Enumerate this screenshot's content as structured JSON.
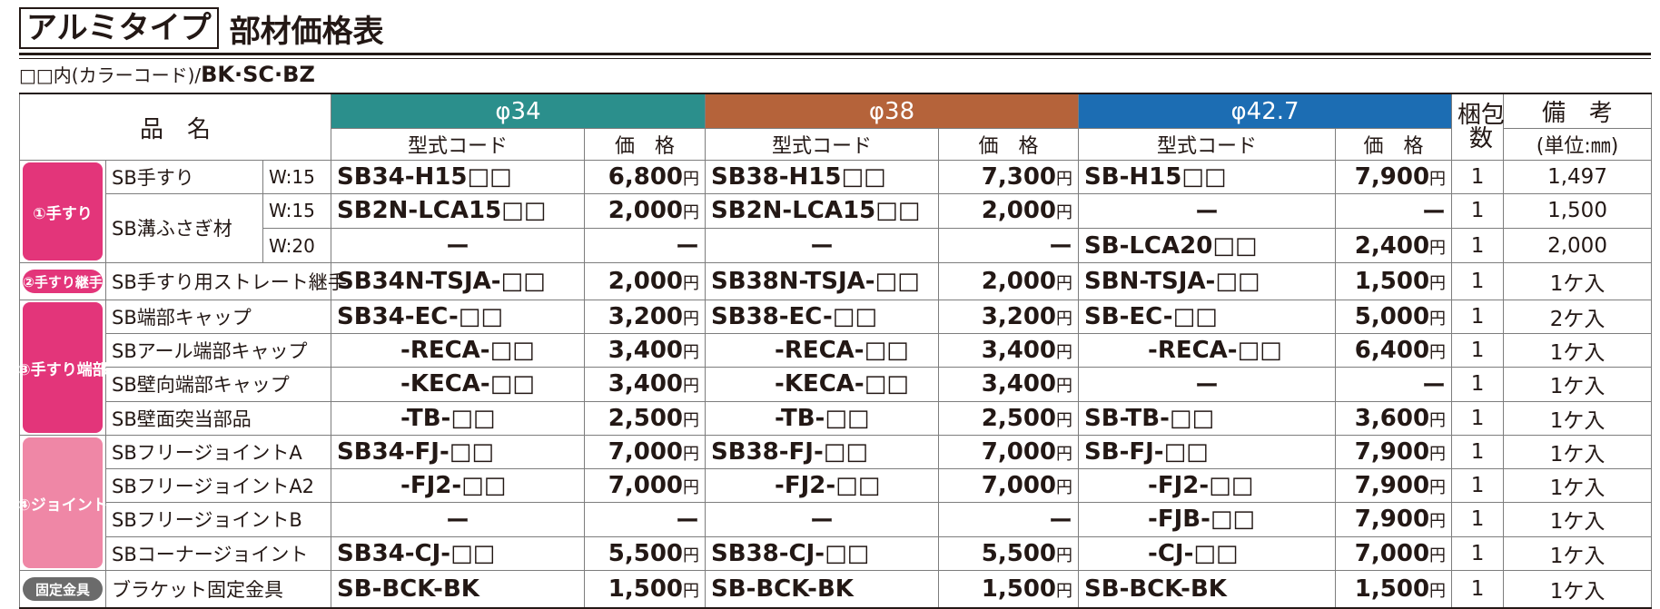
{
  "header": {
    "title_box": "アルミタイプ",
    "title": "部材価格表"
  },
  "note": {
    "text": "□□内(カラーコード)/",
    "codes": "BK·SC·BZ"
  },
  "table": {
    "head": {
      "item": "品　名",
      "diameters": [
        "φ34",
        "φ38",
        "φ42.7"
      ],
      "code": "型式コード",
      "price": "価　格",
      "pack": "梱包数",
      "remarks": "備　考",
      "unit": "(単位:㎜)"
    },
    "currency": "円",
    "groups": [
      {
        "label": "①手すり",
        "items": [
          {
            "name": "SB手すり",
            "variants": [
              {
                "width": "W:15",
                "cells": [
                  "SB34-H15□□",
                  "6,800",
                  "SB38-H15□□",
                  "7,300",
                  "SB-H15□□",
                  "7,900"
                ],
                "pack": 1,
                "remark": "1,497"
              }
            ]
          },
          {
            "name": "SB溝ふさぎ材",
            "variants": [
              {
                "width": "W:15",
                "cells": [
                  "SB2N-LCA15□□",
                  "2,000",
                  "SB2N-LCA15□□",
                  "2,000",
                  "ー",
                  "ー"
                ],
                "pack": 1,
                "remark": "1,500"
              },
              {
                "width": "W:20",
                "cells": [
                  "ー",
                  "ー",
                  "ー",
                  "ー",
                  "SB-LCA20□□",
                  "2,400"
                ],
                "pack": 1,
                "remark": "2,000"
              }
            ]
          }
        ]
      },
      {
        "label": "②手すり継手",
        "items": [
          {
            "name": "SB手すり用ストレート継手",
            "variants": [
              {
                "cells": [
                  "SB34N-TSJA-□□",
                  "2,000",
                  "SB38N-TSJA-□□",
                  "2,000",
                  "SBN-TSJA-□□",
                  "1,500"
                ],
                "pack": 1,
                "remark": "1ケ入"
              }
            ]
          }
        ]
      },
      {
        "label": "③手すり端部",
        "items": [
          {
            "name": "SB端部キャップ",
            "variants": [
              {
                "cells": [
                  "SB34-EC-□□",
                  "3,200",
                  "SB38-EC-□□",
                  "3,200",
                  "SB-EC-□□",
                  "5,000"
                ],
                "pack": 1,
                "remark": "2ケ入"
              }
            ]
          },
          {
            "name": "SBアール端部キャップ",
            "variants": [
              {
                "cells": [
                  "-RECA-□□",
                  "3,400",
                  "-RECA-□□",
                  "3,400",
                  "-RECA-□□",
                  "6,400"
                ],
                "pack": 1,
                "remark": "1ケ入"
              }
            ]
          },
          {
            "name": "SB壁向端部キャップ",
            "variants": [
              {
                "cells": [
                  "-KECA-□□",
                  "3,400",
                  "-KECA-□□",
                  "3,400",
                  "ー",
                  "ー"
                ],
                "pack": 1,
                "remark": "1ケ入"
              }
            ]
          },
          {
            "name": "SB壁面突当部品",
            "variants": [
              {
                "cells": [
                  "-TB-□□",
                  "2,500",
                  "-TB-□□",
                  "2,500",
                  "SB-TB-□□",
                  "3,600"
                ],
                "pack": 1,
                "remark": "1ケ入"
              }
            ]
          }
        ]
      },
      {
        "label": "④ジョイント",
        "items": [
          {
            "name": "SBフリージョイントA",
            "variants": [
              {
                "cells": [
                  "SB34-FJ-□□",
                  "7,000",
                  "SB38-FJ-□□",
                  "7,000",
                  "SB-FJ-□□",
                  "7,900"
                ],
                "pack": 1,
                "remark": "1ケ入"
              }
            ]
          },
          {
            "name": "SBフリージョイントA2",
            "variants": [
              {
                "cells": [
                  "-FJ2-□□",
                  "7,000",
                  "-FJ2-□□",
                  "7,000",
                  "-FJ2-□□",
                  "7,900"
                ],
                "pack": 1,
                "remark": "1ケ入"
              }
            ]
          },
          {
            "name": "SBフリージョイントB",
            "variants": [
              {
                "cells": [
                  "ー",
                  "ー",
                  "ー",
                  "ー",
                  "-FJB-□□",
                  "7,900"
                ],
                "pack": 1,
                "remark": "1ケ入"
              }
            ]
          },
          {
            "name": "SBコーナージョイント",
            "variants": [
              {
                "cells": [
                  "SB34-CJ-□□",
                  "5,500",
                  "SB38-CJ-□□",
                  "5,500",
                  "-CJ-□□",
                  "7,000"
                ],
                "pack": 1,
                "remark": "1ケ入"
              }
            ]
          }
        ]
      },
      {
        "label": "固定金具",
        "items": [
          {
            "name": "ブラケット固定金具",
            "variants": [
              {
                "cells": [
                  "SB-BCK-BK",
                  "1,500",
                  "SB-BCK-BK",
                  "1,500",
                  "SB-BCK-BK",
                  "1,500"
                ],
                "pack": 1,
                "remark": "1ケ入"
              }
            ]
          }
        ]
      }
    ]
  }
}
